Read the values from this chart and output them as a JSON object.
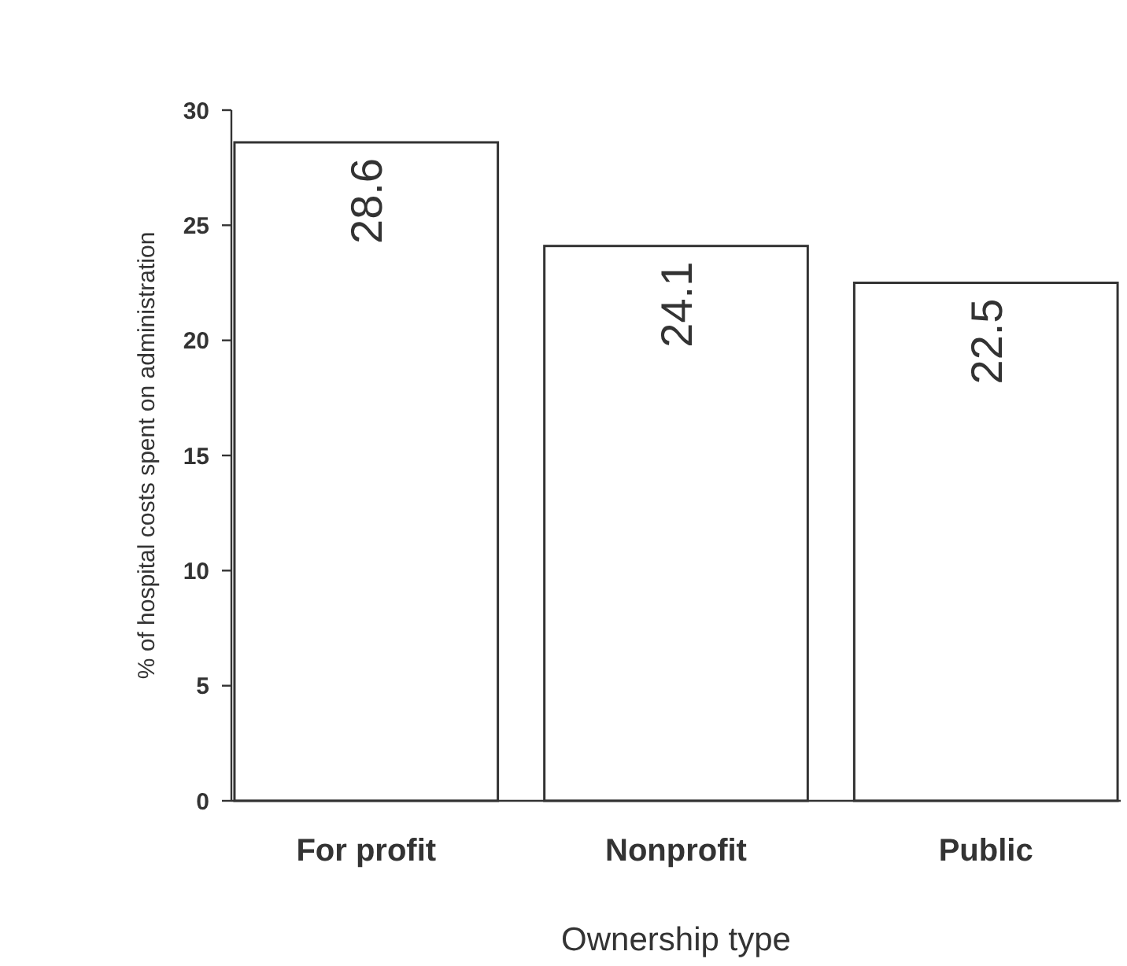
{
  "chart_data": {
    "type": "bar",
    "xlabel": "Ownership type",
    "ylabel": "% of hospital costs spent on administration",
    "categories": [
      "For profit",
      "Nonprofit",
      "Public"
    ],
    "values": [
      28.6,
      24.1,
      22.5
    ],
    "color": "#ffffff",
    "ylim": [
      0,
      30
    ],
    "yticks": [
      0,
      5,
      10,
      15,
      20,
      25,
      30
    ],
    "grid": false,
    "data_labels": true
  }
}
